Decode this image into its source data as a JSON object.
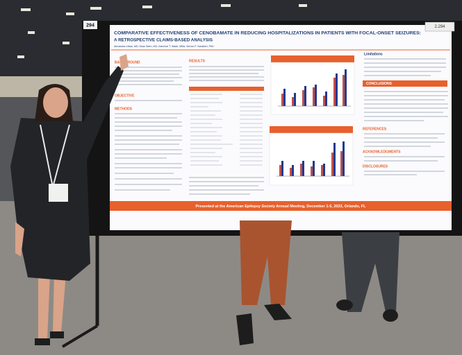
{
  "board_number": "294",
  "poster": {
    "number": "2.294",
    "title_line1": "COMPARATIVE EFFECTIVENESS OF CENOBAMATE IN REDUCING HOSPITALIZATIONS IN PATIENTS WITH FOCAL-ONSET SEIZURES:",
    "title_line2": "A RETROSPECTIVE CLAIMS-BASED ANALYSIS",
    "authors": "Alexandra Urban, MD; Sean Stern, MS; Clarence T. Wade, MBA; Vernon F. Schabert, PhD",
    "sections": [
      "BACKGROUND",
      "OBJECTIVE",
      "METHODS",
      "RESULTS",
      "Limitations",
      "CONCLUSIONS",
      "REFERENCES",
      "ACKNOWLEDGMENTS",
      "DISCLOSURES"
    ],
    "footer": "Presented at the American Epilepsy Society Annual Meeting, December 1-5, 2023, Orlando, FL"
  }
}
